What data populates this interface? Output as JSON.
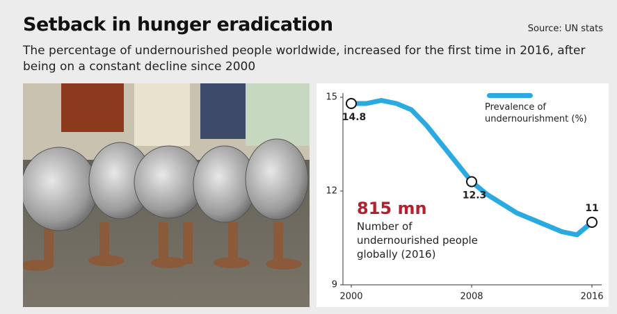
{
  "chart_data": {
    "type": "line",
    "title": "Setback in hunger eradication",
    "source": "Source: UN stats",
    "subtitle": "The percentage of undernourished people worldwide, increased for the first time in 2016, after being on a constant decline since 2000",
    "x": [
      2000,
      2001,
      2002,
      2003,
      2004,
      2005,
      2006,
      2007,
      2008,
      2009,
      2010,
      2011,
      2012,
      2013,
      2014,
      2015,
      2016
    ],
    "series": [
      {
        "name": "Prevalence of undernourishment (%)",
        "color": "#29abe2",
        "values": [
          14.8,
          14.8,
          14.9,
          14.8,
          14.6,
          14.1,
          13.5,
          12.9,
          12.3,
          11.9,
          11.6,
          11.3,
          11.1,
          10.9,
          10.7,
          10.6,
          11
        ]
      }
    ],
    "labeled_points": [
      0,
      8,
      16
    ],
    "annotation": {
      "value": "815 mn",
      "text": "Number of undernourished people globally (2016)"
    },
    "xlim": [
      2000,
      2016
    ],
    "xticks": [
      2000,
      2008,
      2016
    ],
    "ylim": [
      9,
      15
    ],
    "yticks": [
      9,
      12,
      15
    ],
    "grid": false
  }
}
